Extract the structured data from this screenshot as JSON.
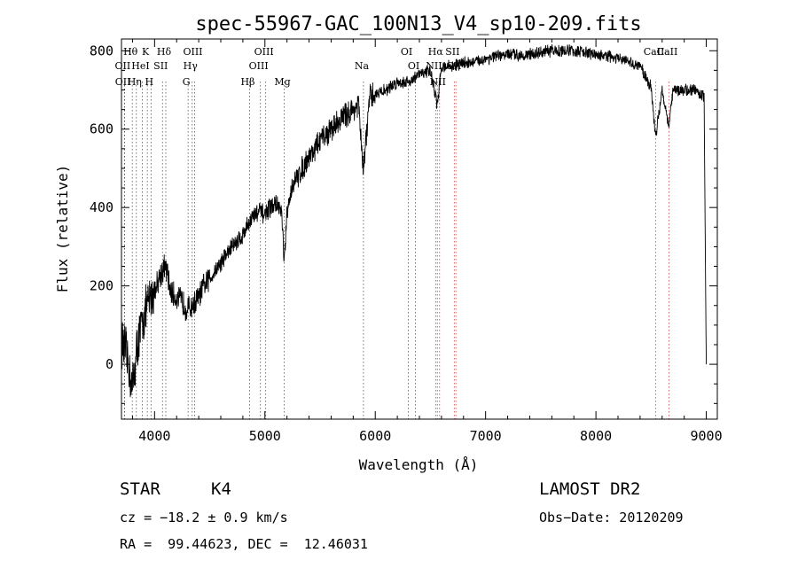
{
  "chart_data": {
    "type": "line",
    "title": "spec-55967-GAC_100N13_V4_sp10-209.fits",
    "xlabel": "Wavelength (Å)",
    "ylabel": "Flux (relative)",
    "xlim": [
      3700,
      9100
    ],
    "ylim": [
      -140,
      830
    ],
    "x_ticks": [
      4000,
      5000,
      6000,
      7000,
      8000,
      9000
    ],
    "y_ticks": [
      0,
      200,
      400,
      600,
      800
    ],
    "grid": false,
    "legend": "none",
    "series": [
      {
        "x": [
          3700,
          3750,
          3800,
          3850,
          3900,
          3950,
          4000,
          4050,
          4100,
          4150,
          4200,
          4250,
          4300,
          4350,
          4400,
          4450,
          4500,
          4600,
          4700,
          4800,
          4850,
          4900,
          4950,
          5000,
          5050,
          5100,
          5150,
          5175,
          5200,
          5250,
          5300,
          5400,
          5500,
          5600,
          5700,
          5800,
          5850,
          5890,
          5950,
          6000,
          6100,
          6200,
          6300,
          6400,
          6500,
          6563,
          6600,
          6700,
          6800,
          6900,
          7000,
          7200,
          7400,
          7600,
          7800,
          8000,
          8200,
          8400,
          8498,
          8542,
          8600,
          8662,
          8700,
          8800,
          8900,
          8950,
          8980,
          9000
        ],
        "y": [
          60,
          20,
          -60,
          60,
          120,
          160,
          190,
          230,
          250,
          180,
          170,
          160,
          140,
          150,
          170,
          200,
          220,
          260,
          300,
          330,
          360,
          380,
          390,
          380,
          400,
          410,
          390,
          260,
          380,
          460,
          480,
          530,
          570,
          600,
          630,
          650,
          660,
          490,
          680,
          690,
          700,
          720,
          720,
          740,
          750,
          660,
          760,
          760,
          770,
          770,
          780,
          790,
          790,
          800,
          800,
          790,
          780,
          760,
          710,
          580,
          700,
          610,
          700,
          700,
          700,
          690,
          680,
          0
        ]
      }
    ],
    "lines": {
      "black": [
        {
          "name": "Hθ",
          "x": 3798
        },
        {
          "name": "K",
          "x": 3934
        },
        {
          "name": "Hδ",
          "x": 4102
        },
        {
          "name": "OIII",
          "x": 4363
        },
        {
          "name": "Hγ",
          "x": 4341
        },
        {
          "name": "G",
          "x": 4304
        },
        {
          "name": "OIII",
          "x": 5007
        },
        {
          "name": "OIII",
          "x": 4959
        },
        {
          "name": "Hβ",
          "x": 4861
        },
        {
          "name": "Mg",
          "x": 5175
        },
        {
          "name": "Na",
          "x": 5893
        },
        {
          "name": "OI",
          "x": 6300
        },
        {
          "name": "OI",
          "x": 6364
        },
        {
          "name": "Hα",
          "x": 6563
        },
        {
          "name": "SII",
          "x": 6716
        },
        {
          "name": "NII",
          "x": 6548
        },
        {
          "name": "NII",
          "x": 6583
        },
        {
          "name": "SII",
          "x": 6731
        },
        {
          "name": "CaII",
          "x": 8662
        },
        {
          "name": "CaII",
          "x": 8542
        },
        {
          "name": "OII",
          "x": 3727
        },
        {
          "name": "HeI",
          "x": 3889
        },
        {
          "name": "Hη",
          "x": 3835
        },
        {
          "name": "OII",
          "x": 3729
        },
        {
          "name": "H",
          "x": 3968
        },
        {
          "name": "SII",
          "x": 4072
        }
      ]
    }
  },
  "labels": {
    "class_label": "STAR",
    "subclass": "K4",
    "survey": "LAMOST DR2",
    "cz": "cz = −18.2 ± 0.9 km/s",
    "obs_date": "Obs−Date: 20120209",
    "coords": "RA =  99.44623, DEC =  12.46031"
  }
}
